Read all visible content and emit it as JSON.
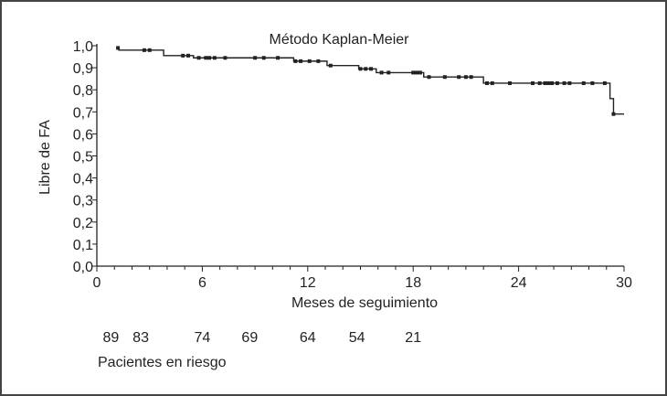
{
  "chart_data": {
    "type": "line",
    "title": "Método Kaplan-Meier",
    "xlabel": "Meses de seguimiento",
    "ylabel": "Libre de FA",
    "xlim": [
      0,
      30
    ],
    "ylim": [
      0,
      1
    ],
    "x_ticks": [
      0,
      6,
      12,
      18,
      24,
      30
    ],
    "x_tick_labels": [
      "0",
      "6",
      "12",
      "18",
      "24",
      "30"
    ],
    "x_minor_tick_step": 1,
    "y_ticks": [
      0,
      0.1,
      0.2,
      0.3,
      0.4,
      0.5,
      0.6,
      0.7,
      0.8,
      0.9,
      1.0
    ],
    "y_tick_labels": [
      "0,0",
      "0,1",
      "0,2",
      "0,3",
      "0,4",
      "0,5",
      "0,6",
      "0,7",
      "0,8",
      "0,9",
      "1,0"
    ],
    "grid": false,
    "line_color": "#222222",
    "steps": [
      {
        "t": 1.2,
        "s": 0.99
      },
      {
        "t": 1.25,
        "s": 0.98
      },
      {
        "t": 3.8,
        "s": 0.955
      },
      {
        "t": 5.5,
        "s": 0.945
      },
      {
        "t": 11.2,
        "s": 0.93
      },
      {
        "t": 13.1,
        "s": 0.91
      },
      {
        "t": 14.9,
        "s": 0.895
      },
      {
        "t": 15.9,
        "s": 0.878
      },
      {
        "t": 18.6,
        "s": 0.858
      },
      {
        "t": 22.0,
        "s": 0.83
      },
      {
        "t": 29.2,
        "s": 0.76
      },
      {
        "t": 29.4,
        "s": 0.69
      },
      {
        "t": 30.0,
        "s": 0.69
      }
    ],
    "censored": [
      1.2,
      2.7,
      3.0,
      4.9,
      5.2,
      5.8,
      6.2,
      6.4,
      6.7,
      7.3,
      9.0,
      9.5,
      10.3,
      11.3,
      11.6,
      12.1,
      12.6,
      13.3,
      15.0,
      15.3,
      15.6,
      16.2,
      16.6,
      18.0,
      18.2,
      18.4,
      18.9,
      19.8,
      20.6,
      21.0,
      21.3,
      22.2,
      22.5,
      23.5,
      24.8,
      25.2,
      25.5,
      25.7,
      25.9,
      26.2,
      26.6,
      26.9,
      27.7,
      28.2,
      28.9,
      29.4
    ],
    "at_risk": {
      "label": "Pacientes en riesgo",
      "values": [
        "89",
        "83",
        "74",
        "69",
        "64",
        "54",
        "21"
      ],
      "months": [
        0.8,
        2.5,
        6,
        8.7,
        12,
        14.8,
        18
      ]
    }
  }
}
